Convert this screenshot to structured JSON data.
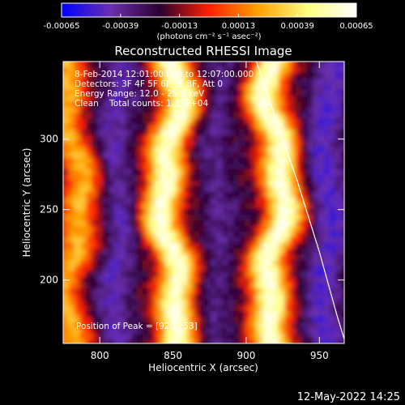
{
  "chart_data": {
    "type": "heatmap",
    "title": "Reconstructed RHESSI Image",
    "xlabel": "Heliocentric X (arcsec)",
    "ylabel": "Heliocentric Y (arcsec)",
    "xlim": [
      775,
      967
    ],
    "ylim": [
      155,
      355
    ],
    "x_ticks": [
      800,
      850,
      900,
      950
    ],
    "y_ticks": [
      200,
      250,
      300
    ],
    "x_tick_labels": [
      "800",
      "850",
      "900",
      "950"
    ],
    "y_tick_labels": [
      "200",
      "250",
      "300"
    ],
    "colorbar": {
      "range": [
        -0.00065,
        0.00065
      ],
      "ticks": [
        -0.00065,
        -0.00039,
        -0.00013,
        0.00013,
        0.00039,
        0.00065
      ],
      "tick_labels": [
        "-0.00065",
        "-0.00039",
        "-0.00013",
        "0.00013",
        "0.00039",
        "0.00065"
      ],
      "unit_label": "(photons cm⁻² s⁻¹ asec⁻²)",
      "colors": [
        "#0000ff",
        "#6a2fb0",
        "#2a0030",
        "#ff2000",
        "#ffa000",
        "#ffff80",
        "#ffffff"
      ]
    },
    "annotations": {
      "time_range": "8-Feb-2014 12:01:00.000 to 12:07:00.000",
      "detectors": "Detectors: 3F 4F 5F 6F 7F 8F, Att 0",
      "energy_range": "Energy Range: 12.0 - 25.0 keV",
      "clean": "Clean    Total counts: 1.31E+04",
      "peak": "Position of Peak = [920,253]"
    },
    "peak_position": [
      920,
      253
    ],
    "stripes": [
      {
        "center_x": 782,
        "amplitude": 0.6
      },
      {
        "center_x": 848,
        "amplitude": 1.0
      },
      {
        "center_x": 920,
        "amplitude": 1.0
      }
    ],
    "limb": {
      "points": [
        [
          907,
          355
        ],
        [
          920,
          315
        ],
        [
          935,
          270
        ],
        [
          950,
          220
        ],
        [
          962,
          175
        ],
        [
          967,
          158
        ]
      ],
      "color": "#ffffff"
    }
  },
  "footer": {
    "timestamp": "12-May-2022 14:25"
  }
}
